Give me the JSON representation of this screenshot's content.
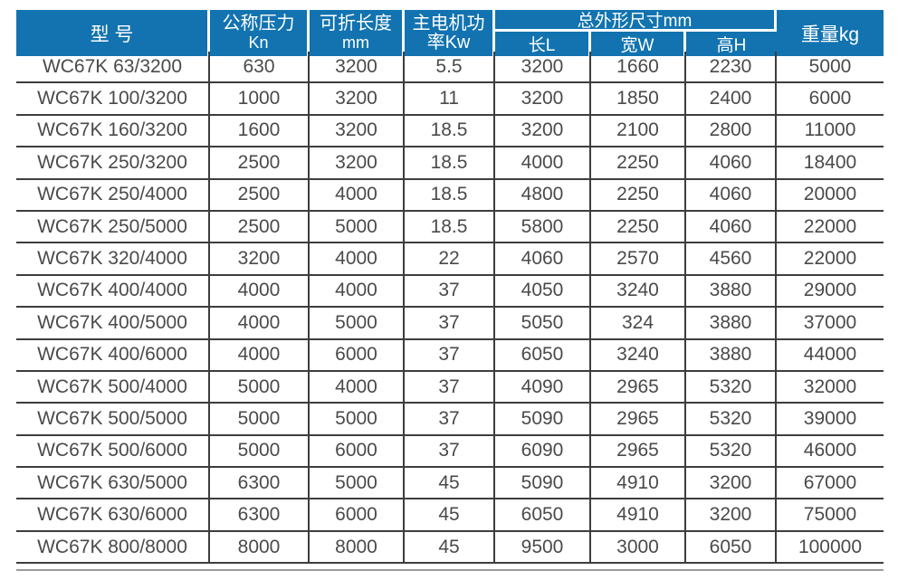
{
  "colors": {
    "header_bg": "#1273b0",
    "header_text": "#ffffff",
    "body_text": "#4a4a4a",
    "grid_line": "#3d3d3d",
    "footer_line": "#9b9b9b"
  },
  "table": {
    "header": {
      "model": "型 号",
      "pressure": {
        "line1": "公称压力",
        "line2": "Kn"
      },
      "fold_length": {
        "line1": "可折长度",
        "line2": "mm"
      },
      "motor_power": {
        "line1": "主电机功",
        "line2": "率Kw"
      },
      "dimensions_group": "总外形尺寸mm",
      "dim_length": "长L",
      "dim_width": "宽W",
      "dim_height": "高H",
      "weight": "重量kg"
    },
    "rows": [
      {
        "model": "WC67K 63/3200",
        "pressure_kn": "630",
        "fold_length_mm": "3200",
        "motor_power_kw": "5.5",
        "dim_l": "3200",
        "dim_w": "1660",
        "dim_h": "2230",
        "weight_kg": "5000"
      },
      {
        "model": "WC67K 100/3200",
        "pressure_kn": "1000",
        "fold_length_mm": "3200",
        "motor_power_kw": "11",
        "dim_l": "3200",
        "dim_w": "1850",
        "dim_h": "2400",
        "weight_kg": "6000"
      },
      {
        "model": "WC67K 160/3200",
        "pressure_kn": "1600",
        "fold_length_mm": "3200",
        "motor_power_kw": "18.5",
        "dim_l": "3200",
        "dim_w": "2100",
        "dim_h": "2800",
        "weight_kg": "11000"
      },
      {
        "model": "WC67K 250/3200",
        "pressure_kn": "2500",
        "fold_length_mm": "3200",
        "motor_power_kw": "18.5",
        "dim_l": "4000",
        "dim_w": "2250",
        "dim_h": "4060",
        "weight_kg": "18400"
      },
      {
        "model": "WC67K 250/4000",
        "pressure_kn": "2500",
        "fold_length_mm": "4000",
        "motor_power_kw": "18.5",
        "dim_l": "4800",
        "dim_w": "2250",
        "dim_h": "4060",
        "weight_kg": "20000"
      },
      {
        "model": "WC67K 250/5000",
        "pressure_kn": "2500",
        "fold_length_mm": "5000",
        "motor_power_kw": "18.5",
        "dim_l": "5800",
        "dim_w": "2250",
        "dim_h": "4060",
        "weight_kg": "22000"
      },
      {
        "model": "WC67K 320/4000",
        "pressure_kn": "3200",
        "fold_length_mm": "4000",
        "motor_power_kw": "22",
        "dim_l": "4060",
        "dim_w": "2570",
        "dim_h": "4560",
        "weight_kg": "22000"
      },
      {
        "model": "WC67K 400/4000",
        "pressure_kn": "4000",
        "fold_length_mm": "4000",
        "motor_power_kw": "37",
        "dim_l": "4050",
        "dim_w": "3240",
        "dim_h": "3880",
        "weight_kg": "29000"
      },
      {
        "model": "WC67K 400/5000",
        "pressure_kn": "4000",
        "fold_length_mm": "5000",
        "motor_power_kw": "37",
        "dim_l": "5050",
        "dim_w": "324",
        "dim_h": "3880",
        "weight_kg": "37000"
      },
      {
        "model": "WC67K 400/6000",
        "pressure_kn": "4000",
        "fold_length_mm": "6000",
        "motor_power_kw": "37",
        "dim_l": "6050",
        "dim_w": "3240",
        "dim_h": "3880",
        "weight_kg": "44000"
      },
      {
        "model": "WC67K 500/4000",
        "pressure_kn": "5000",
        "fold_length_mm": "4000",
        "motor_power_kw": "37",
        "dim_l": "4090",
        "dim_w": "2965",
        "dim_h": "5320",
        "weight_kg": "32000"
      },
      {
        "model": "WC67K 500/5000",
        "pressure_kn": "5000",
        "fold_length_mm": "5000",
        "motor_power_kw": "37",
        "dim_l": "5090",
        "dim_w": "2965",
        "dim_h": "5320",
        "weight_kg": "39000"
      },
      {
        "model": "WC67K 500/6000",
        "pressure_kn": "5000",
        "fold_length_mm": "6000",
        "motor_power_kw": "37",
        "dim_l": "6090",
        "dim_w": "2965",
        "dim_h": "5320",
        "weight_kg": "46000"
      },
      {
        "model": "WC67K 630/5000",
        "pressure_kn": "6300",
        "fold_length_mm": "5000",
        "motor_power_kw": "45",
        "dim_l": "5090",
        "dim_w": "4910",
        "dim_h": "3200",
        "weight_kg": "67000"
      },
      {
        "model": "WC67K 630/6000",
        "pressure_kn": "6300",
        "fold_length_mm": "6000",
        "motor_power_kw": "45",
        "dim_l": "6050",
        "dim_w": "4910",
        "dim_h": "3200",
        "weight_kg": "75000"
      },
      {
        "model": "WC67K 800/8000",
        "pressure_kn": "8000",
        "fold_length_mm": "8000",
        "motor_power_kw": "45",
        "dim_l": "9500",
        "dim_w": "3000",
        "dim_h": "6050",
        "weight_kg": "100000"
      }
    ]
  }
}
